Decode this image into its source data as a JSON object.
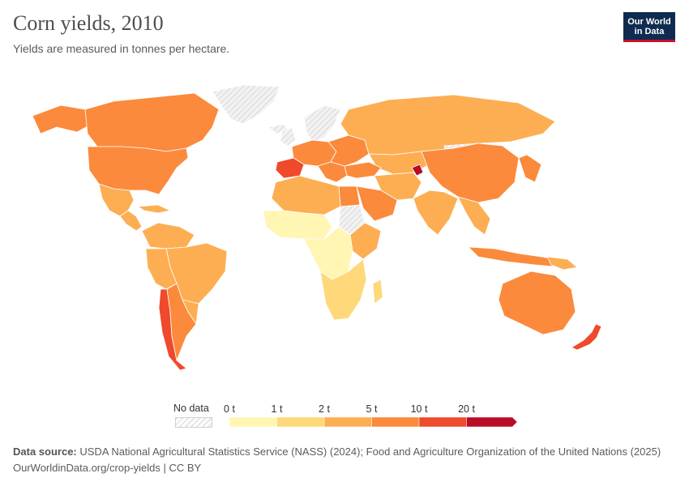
{
  "header": {
    "title": "Corn yields, 2010",
    "subtitle": "Yields are measured in tonnes per hectare."
  },
  "logo": {
    "line1": "Our World",
    "line2": "in Data"
  },
  "legend": {
    "no_data_label": "No data",
    "bins": [
      {
        "label": "0 t",
        "color": "#fff6b3"
      },
      {
        "label": "1 t",
        "color": "#fed879"
      },
      {
        "label": "2 t",
        "color": "#fdae52"
      },
      {
        "label": "5 t",
        "color": "#fb8a3c"
      },
      {
        "label": "10 t",
        "color": "#ef4a2b"
      },
      {
        "label": "20 t",
        "color": "#bb0c27"
      }
    ]
  },
  "map_colors": {
    "very_low": "#fff6b3",
    "low": "#fed879",
    "mid": "#fdae52",
    "high": "#fb8a3c",
    "very_high": "#ef4a2b",
    "extreme": "#bb0c27",
    "no_data": "#e8e8e8",
    "border": "#ffffff"
  },
  "footer": {
    "source_label": "Data source:",
    "source_text": "USDA National Agricultural Statistics Service (NASS) (2024); Food and Agriculture Organization of the United Nations (2025)",
    "url_text": "OurWorldinData.org/crop-yields",
    "license_text": "| CC BY"
  }
}
